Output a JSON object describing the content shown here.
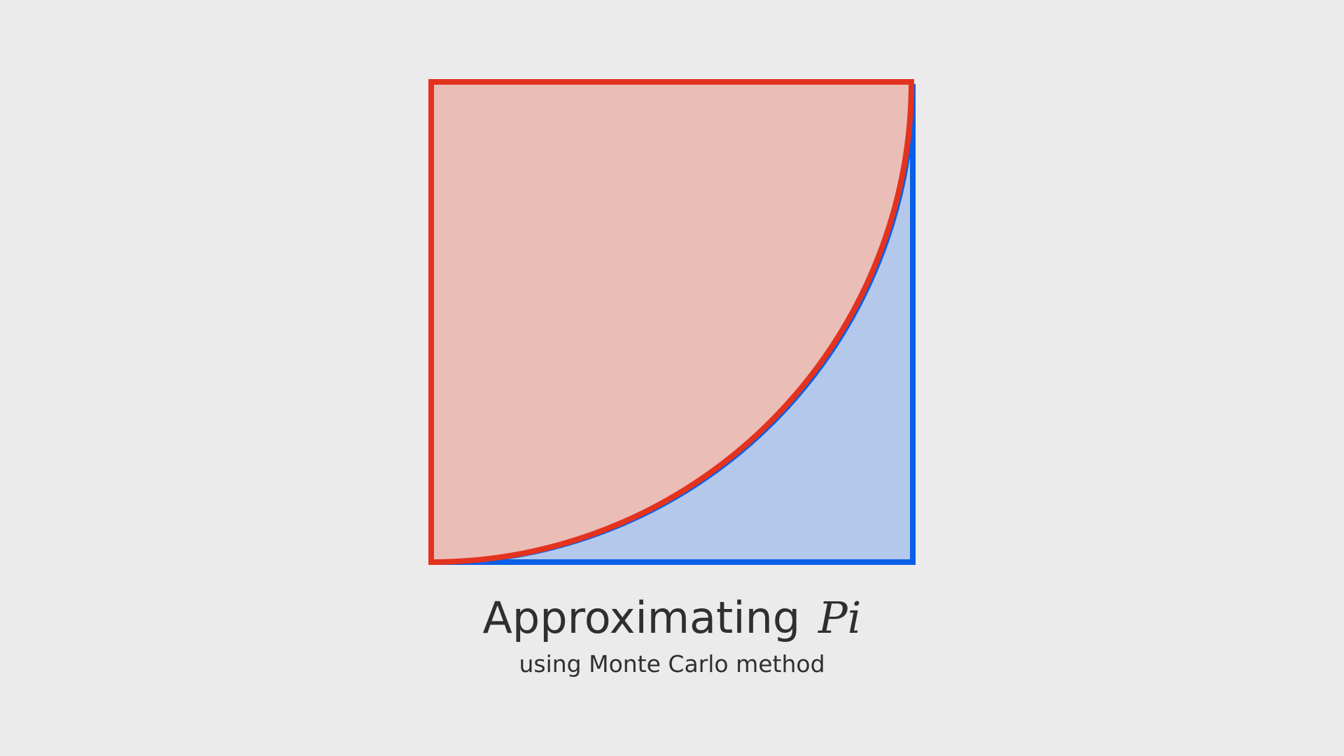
{
  "title": {
    "text": "Approximating",
    "symbol": "Pi"
  },
  "subtitle": "using Monte Carlo method",
  "colors": {
    "background": "#ebebeb",
    "circle_fill": "#ebbdb7",
    "circle_stroke": "#e3331f",
    "outside_fill": "#b3c8eb",
    "outside_stroke": "#0a5fe8",
    "text": "#2f2f2f"
  }
}
